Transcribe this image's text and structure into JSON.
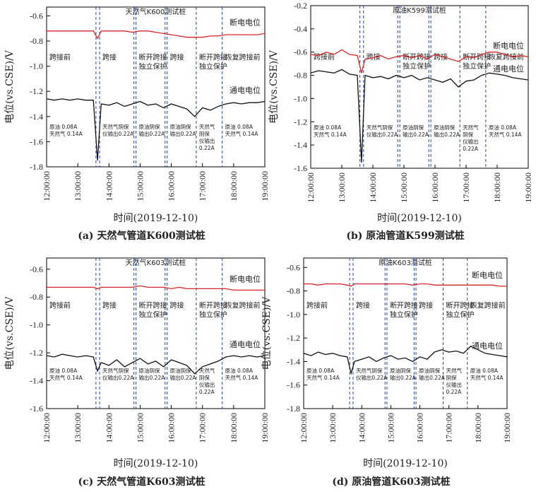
{
  "chart_data": [
    {
      "type": "line",
      "caption": "(a) 天然气管道K600测试桩",
      "title": "天然气K600测试桩",
      "xlabel": "时间(2019-12-10)",
      "ylabel": "电位(vs.CSE)/V",
      "x": [
        "12:00:00",
        "12:15:00",
        "12:30:00",
        "12:45:00",
        "13:00:00",
        "13:15:00",
        "13:30:00",
        "13:38:00",
        "13:45:00",
        "14:00:00",
        "14:15:00",
        "14:30:00",
        "14:45:00",
        "15:00:00",
        "15:15:00",
        "15:30:00",
        "15:45:00",
        "16:00:00",
        "16:15:00",
        "16:30:00",
        "16:45:00",
        "17:00:00",
        "17:15:00",
        "17:30:00",
        "17:45:00",
        "18:00:00",
        "18:15:00",
        "18:30:00",
        "18:45:00",
        "19:00:00"
      ],
      "series": [
        {
          "name": "断电电位",
          "color": "#d62728",
          "values": [
            -0.72,
            -0.72,
            -0.72,
            -0.72,
            -0.72,
            -0.72,
            -0.72,
            -0.78,
            -0.72,
            -0.72,
            -0.72,
            -0.72,
            -0.73,
            -0.72,
            -0.72,
            -0.73,
            -0.74,
            -0.75,
            -0.76,
            -0.77,
            -0.77,
            -0.77,
            -0.76,
            -0.76,
            -0.75,
            -0.75,
            -0.75,
            -0.75,
            -0.75,
            -0.74
          ]
        },
        {
          "name": "通电电位",
          "color": "#111111",
          "values": [
            -1.26,
            -1.27,
            -1.26,
            -1.27,
            -1.26,
            -1.27,
            -1.27,
            -1.75,
            -1.3,
            -1.31,
            -1.29,
            -1.32,
            -1.3,
            -1.28,
            -1.31,
            -1.3,
            -1.33,
            -1.3,
            -1.32,
            -1.34,
            -1.4,
            -1.33,
            -1.35,
            -1.32,
            -1.3,
            -1.29,
            -1.3,
            -1.29,
            -1.29,
            -1.28
          ]
        }
      ],
      "xlim": [
        "12:00:00",
        "19:00:00"
      ],
      "xticks": [
        "12:00:00",
        "13:00:00",
        "14:00:00",
        "15:00:00",
        "16:00:00",
        "17:00:00",
        "18:00:00",
        "19:00:00"
      ],
      "ylim": [
        -1.8,
        -0.53
      ],
      "yticks": [
        -0.6,
        -0.8,
        {
          "value": -1,
          "label": "-1.0"
        },
        -1.2,
        -1.4,
        -1.6,
        -1.8
      ],
      "dividers": [
        "13:35:00",
        "13:42:00",
        "14:48:00",
        "14:52:00",
        "15:48:00",
        "15:52:00",
        "16:48:00",
        "17:38:00"
      ],
      "divider_color": "#2244aa",
      "segments": [
        {
          "label": [
            "跨接前"
          ],
          "note": [
            "原油 0.08A",
            "天然气 0.14A"
          ]
        },
        {
          "label": [
            "跨接"
          ],
          "note": [
            "天然气阴保",
            "仪输出0.22A"
          ]
        },
        {
          "label": [
            "断开跨接",
            "独立保护"
          ],
          "note": [
            "原油阴保",
            "输出0.22A"
          ]
        },
        {
          "label": [
            "跨接"
          ],
          "note": [
            "原油阴保",
            "输出0.22A"
          ]
        },
        {
          "label": [
            "断开跨接",
            "独立保护"
          ],
          "note": [
            "天然气",
            "阴保",
            "仪输出",
            "0.22A"
          ]
        },
        {
          "label": [
            "恢复跨接前"
          ],
          "note": [
            "原油 0.08A",
            "天然气 0.14A"
          ]
        }
      ]
    },
    {
      "type": "line",
      "caption": "(b) 原油管道K599测试桩",
      "title": "原油K599测试桩",
      "xlabel": "时间(2019-12-10)",
      "ylabel": "电位(vs.CSE)/V",
      "x": [
        "12:00:00",
        "12:15:00",
        "12:30:00",
        "12:45:00",
        "13:00:00",
        "13:15:00",
        "13:30:00",
        "13:38:00",
        "13:45:00",
        "14:00:00",
        "14:15:00",
        "14:30:00",
        "14:45:00",
        "15:00:00",
        "15:15:00",
        "15:30:00",
        "15:45:00",
        "16:00:00",
        "16:15:00",
        "16:30:00",
        "16:45:00",
        "17:00:00",
        "17:15:00",
        "17:30:00",
        "17:45:00",
        "18:00:00",
        "18:15:00",
        "18:30:00",
        "18:45:00",
        "19:00:00"
      ],
      "series": [
        {
          "name": "断电电位",
          "color": "#d62728",
          "values": [
            -0.62,
            -0.63,
            -0.6,
            -0.62,
            -0.58,
            -0.62,
            -0.63,
            -0.78,
            -0.66,
            -0.65,
            -0.63,
            -0.66,
            -0.64,
            -0.63,
            -0.65,
            -0.63,
            -0.66,
            -0.62,
            -0.64,
            -0.66,
            -0.68,
            -0.64,
            -0.65,
            -0.62,
            -0.6,
            -0.6,
            -0.62,
            -0.64,
            -0.63,
            -0.64
          ]
        },
        {
          "name": "通电电位",
          "color": "#111111",
          "values": [
            -0.78,
            -0.76,
            -0.77,
            -0.78,
            -0.75,
            -0.79,
            -0.8,
            -1.55,
            -0.8,
            -0.82,
            -0.81,
            -0.83,
            -0.8,
            -0.82,
            -0.8,
            -0.84,
            -0.82,
            -0.84,
            -0.86,
            -0.83,
            -0.9,
            -0.85,
            -0.84,
            -0.8,
            -0.78,
            -0.79,
            -0.8,
            -0.82,
            -0.83,
            -0.84
          ]
        }
      ],
      "xlim": [
        "12:00:00",
        "19:00:00"
      ],
      "xticks": [
        "12:00:00",
        "13:00:00",
        "14:00:00",
        "15:00:00",
        "16:00:00",
        "17:00:00",
        "18:00:00",
        "19:00:00"
      ],
      "ylim": [
        -1.6,
        -0.2
      ],
      "yticks": [
        -0.2,
        -0.4,
        -0.6,
        -0.8,
        {
          "value": -1,
          "label": "-1.0"
        },
        -1.2,
        -1.4,
        -1.6
      ],
      "dividers": [
        "13:35:00",
        "13:42:00",
        "14:48:00",
        "14:52:00",
        "15:48:00",
        "15:52:00",
        "16:48:00",
        "17:38:00"
      ],
      "divider_color": "#2244aa",
      "segments": [
        {
          "label": [
            "跨接前"
          ],
          "note": [
            "原油 0.08A",
            "天然气 0.14A"
          ]
        },
        {
          "label": [
            "跨接"
          ],
          "note": [
            "天然气阴保",
            "仪输出0.22A"
          ]
        },
        {
          "label": [
            "断开跨接",
            "独立保护"
          ],
          "note": [
            "原油阴保",
            "输出0.22A"
          ]
        },
        {
          "label": [
            "跨接"
          ],
          "note": [
            "原油阴保",
            "输出0.22A"
          ]
        },
        {
          "label": [
            "断开跨接",
            "独立保护"
          ],
          "note": [
            "天然气",
            "阴保",
            "仪输出",
            "0.22A"
          ]
        },
        {
          "label": [
            "恢复跨接前"
          ],
          "note": [
            "原油 0.08A",
            "天然气 0.14A"
          ]
        }
      ]
    },
    {
      "type": "line",
      "caption": "(c) 天然气管道K603测试桩",
      "title": "天然气K603测试桩",
      "xlabel": "时间(2019-12-10)",
      "ylabel": "电位(vs.CSE)/V",
      "x": [
        "12:00:00",
        "12:15:00",
        "12:30:00",
        "12:45:00",
        "13:00:00",
        "13:15:00",
        "13:30:00",
        "13:38:00",
        "13:45:00",
        "14:00:00",
        "14:15:00",
        "14:30:00",
        "14:45:00",
        "15:00:00",
        "15:15:00",
        "15:30:00",
        "15:45:00",
        "16:00:00",
        "16:15:00",
        "16:30:00",
        "16:45:00",
        "17:00:00",
        "17:15:00",
        "17:30:00",
        "17:45:00",
        "18:00:00",
        "18:15:00",
        "18:30:00",
        "18:45:00",
        "19:00:00"
      ],
      "series": [
        {
          "name": "断电电位",
          "color": "#d62728",
          "values": [
            -0.73,
            -0.73,
            -0.73,
            -0.73,
            -0.73,
            -0.73,
            -0.73,
            -0.74,
            -0.73,
            -0.73,
            -0.73,
            -0.73,
            -0.73,
            -0.72,
            -0.73,
            -0.73,
            -0.73,
            -0.74,
            -0.73,
            -0.74,
            -0.74,
            -0.74,
            -0.74,
            -0.74,
            -0.74,
            -0.75,
            -0.75,
            -0.75,
            -0.75,
            -0.75
          ]
        },
        {
          "name": "通电电位",
          "color": "#111111",
          "values": [
            -1.22,
            -1.23,
            -1.21,
            -1.22,
            -1.23,
            -1.22,
            -1.23,
            -1.33,
            -1.27,
            -1.29,
            -1.25,
            -1.3,
            -1.27,
            -1.24,
            -1.28,
            -1.26,
            -1.3,
            -1.25,
            -1.27,
            -1.29,
            -1.35,
            -1.3,
            -1.28,
            -1.26,
            -1.23,
            -1.22,
            -1.23,
            -1.22,
            -1.23,
            -1.22
          ]
        }
      ],
      "xlim": [
        "12:00:00",
        "19:00:00"
      ],
      "xticks": [
        "12:00:00",
        "13:00:00",
        "14:00:00",
        "15:00:00",
        "16:00:00",
        "17:00:00",
        "18:00:00",
        "19:00:00"
      ],
      "ylim": [
        -1.6,
        -0.52
      ],
      "yticks": [
        -0.6,
        -0.8,
        {
          "value": -1,
          "label": "-1.0"
        },
        -1.2,
        -1.4,
        -1.6
      ],
      "dividers": [
        "13:35:00",
        "13:42:00",
        "14:48:00",
        "14:52:00",
        "15:48:00",
        "15:52:00",
        "16:48:00",
        "17:38:00"
      ],
      "divider_color": "#2244aa",
      "segments": [
        {
          "label": [
            "跨接前"
          ],
          "note": [
            "原油 0.08A",
            "天然气 0.14A"
          ]
        },
        {
          "label": [
            "跨接"
          ],
          "note": [
            "天然气阴保",
            "仪输出0.22A"
          ]
        },
        {
          "label": [
            "断开跨接",
            "独立保护"
          ],
          "note": [
            "原油阴保",
            "输出0.22A"
          ]
        },
        {
          "label": [
            "跨接"
          ],
          "note": [
            "原油阴保",
            "输出0.22A"
          ]
        },
        {
          "label": [
            "断开跨接",
            "独立保护"
          ],
          "note": [
            "天然气",
            "阴保",
            "仪输出",
            "0.22A"
          ]
        },
        {
          "label": [
            "恢复跨接前"
          ],
          "note": [
            "原油 0.08A",
            "天然气 0.14A"
          ]
        }
      ]
    },
    {
      "type": "line",
      "caption": "(d) 原油管道K603测试桩",
      "title": "原油K603测试桩",
      "xlabel": "时间(2019-12-10)",
      "ylabel": "电位(vs.CSE)/V",
      "x": [
        "12:00:00",
        "12:15:00",
        "12:30:00",
        "12:45:00",
        "13:00:00",
        "13:15:00",
        "13:30:00",
        "13:38:00",
        "13:45:00",
        "14:00:00",
        "14:15:00",
        "14:30:00",
        "14:45:00",
        "15:00:00",
        "15:15:00",
        "15:30:00",
        "15:45:00",
        "16:00:00",
        "16:15:00",
        "16:30:00",
        "16:45:00",
        "17:00:00",
        "17:15:00",
        "17:30:00",
        "17:45:00",
        "18:00:00",
        "18:15:00",
        "18:30:00",
        "18:45:00",
        "19:00:00"
      ],
      "series": [
        {
          "name": "断电电位",
          "color": "#d62728",
          "values": [
            -0.74,
            -0.74,
            -0.75,
            -0.74,
            -0.74,
            -0.74,
            -0.75,
            -0.76,
            -0.74,
            -0.74,
            -0.74,
            -0.74,
            -0.74,
            -0.74,
            -0.74,
            -0.74,
            -0.75,
            -0.74,
            -0.74,
            -0.75,
            -0.75,
            -0.75,
            -0.75,
            -0.75,
            -0.75,
            -0.75,
            -0.75,
            -0.75,
            -0.76,
            -0.76
          ]
        },
        {
          "name": "通电电位",
          "color": "#111111",
          "values": [
            -1.33,
            -1.35,
            -1.32,
            -1.34,
            -1.33,
            -1.35,
            -1.36,
            -1.5,
            -1.4,
            -1.38,
            -1.36,
            -1.4,
            -1.37,
            -1.35,
            -1.38,
            -1.37,
            -1.4,
            -1.36,
            -1.38,
            -1.32,
            -1.3,
            -1.32,
            -1.31,
            -1.33,
            -1.27,
            -1.3,
            -1.33,
            -1.34,
            -1.35,
            -1.36
          ]
        }
      ],
      "xlim": [
        "12:00:00",
        "19:00:00"
      ],
      "xticks": [
        "12:00:00",
        "13:00:00",
        "14:00:00",
        "15:00:00",
        "16:00:00",
        "17:00:00",
        "18:00:00",
        "19:00:00"
      ],
      "ylim": [
        -1.8,
        -0.52
      ],
      "yticks": [
        -0.6,
        -0.8,
        {
          "value": -1,
          "label": "-1.0"
        },
        -1.2,
        -1.4,
        -1.6,
        -1.8
      ],
      "dividers": [
        "13:35:00",
        "13:42:00",
        "14:48:00",
        "14:52:00",
        "15:48:00",
        "15:52:00",
        "16:48:00",
        "17:38:00"
      ],
      "divider_color": "#2244aa",
      "segments": [
        {
          "label": [
            "跨接前"
          ],
          "note": [
            "原油 0.08A",
            "天然气 0.14A"
          ]
        },
        {
          "label": [
            "跨接"
          ],
          "note": [
            "天然气阴保",
            "仪输出0.22A"
          ]
        },
        {
          "label": [
            "断开跨接",
            "独立保护"
          ],
          "note": [
            "原油阴保",
            "输出0.22A"
          ]
        },
        {
          "label": [
            "跨接"
          ],
          "note": [
            "原油阴保",
            "输出0.22A"
          ]
        },
        {
          "label": [
            "断开跨接",
            "独立保护"
          ],
          "note": [
            "天然气",
            "阴保",
            "仪输出",
            "0.22A"
          ]
        },
        {
          "label": [
            "恢复跨接前"
          ],
          "note": [
            "原油 0.08A",
            "天然气 0.14A"
          ]
        }
      ]
    }
  ]
}
